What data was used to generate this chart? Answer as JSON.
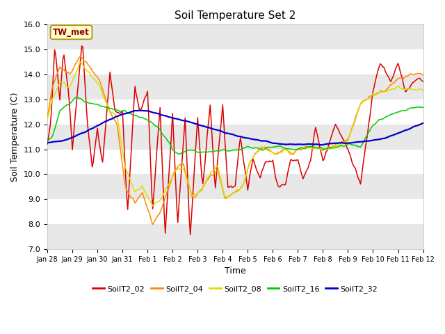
{
  "title": "Soil Temperature Set 2",
  "xlabel": "Time",
  "ylabel": "Soil Temperature (C)",
  "ylim": [
    7.0,
    16.0
  ],
  "yticks": [
    7.0,
    8.0,
    9.0,
    10.0,
    11.0,
    12.0,
    13.0,
    14.0,
    15.0,
    16.0
  ],
  "figsize": [
    6.4,
    4.8
  ],
  "dpi": 100,
  "fig_bg": "#ffffff",
  "plot_bg": "#ffffff",
  "band_color": "#e8e8e8",
  "annotation_label": "TW_met",
  "annotation_color": "#990000",
  "annotation_bg": "#ffffcc",
  "annotation_border": "#aa8800",
  "series": {
    "SoilT2_02": {
      "color": "#dd0000",
      "lw": 1.1
    },
    "SoilT2_04": {
      "color": "#ff8800",
      "lw": 1.1
    },
    "SoilT2_08": {
      "color": "#dddd00",
      "lw": 1.1
    },
    "SoilT2_16": {
      "color": "#00cc00",
      "lw": 1.1
    },
    "SoilT2_32": {
      "color": "#0000cc",
      "lw": 1.6
    }
  },
  "legend_colors": [
    "#dd0000",
    "#ff8800",
    "#dddd00",
    "#00cc00",
    "#0000cc"
  ],
  "legend_labels": [
    "SoilT2_02",
    "SoilT2_04",
    "SoilT2_08",
    "SoilT2_16",
    "SoilT2_32"
  ],
  "xtick_labels": [
    "Jan 28",
    "Jan 29",
    "Jan 30",
    "Jan 31",
    "Feb 1",
    "Feb 2",
    "Feb 3",
    "Feb 4",
    "Feb 5",
    "Feb 6",
    "Feb 7",
    "Feb 8",
    "Feb 9",
    "Feb 10",
    "Feb 11",
    "Feb 12"
  ]
}
